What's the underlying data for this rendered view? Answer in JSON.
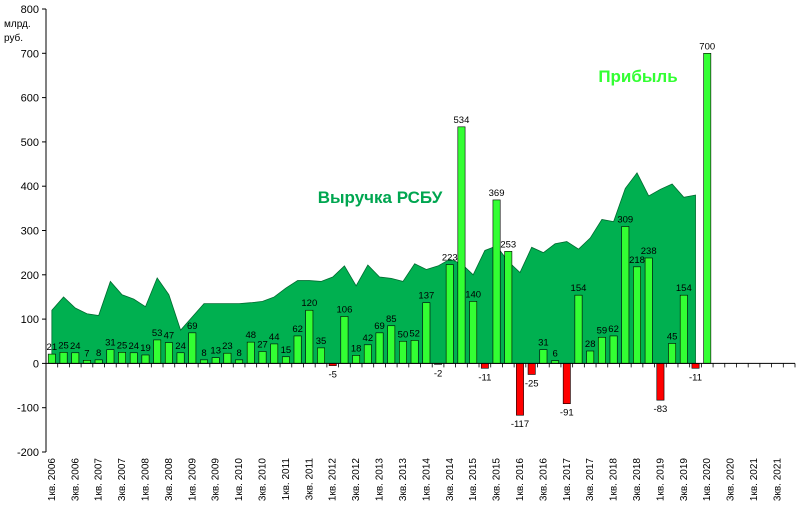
{
  "chart_data": {
    "type": "bar",
    "unit_label": [
      "млрд.",
      "руб."
    ],
    "ylim": [
      -200,
      800
    ],
    "y_ticks": [
      -200,
      -100,
      0,
      100,
      200,
      300,
      400,
      500,
      600,
      700,
      800
    ],
    "x_tick_labels": [
      "1кв. 2006",
      "3кв. 2006",
      "1кв. 2007",
      "3кв. 2007",
      "1кв. 2008",
      "3кв. 2008",
      "1кв. 2009",
      "3кв. 2009",
      "1кв. 2010",
      "3кв. 2010",
      "1кв. 2011",
      "3кв. 2011",
      "1кв. 2012",
      "3кв. 2012",
      "1кв. 2013",
      "3кв. 2013",
      "1кв. 2014",
      "3кв. 2014",
      "1кв. 2015",
      "3кв. 2015",
      "1кв. 2016",
      "3кв. 2016",
      "1кв. 2017",
      "3кв. 2017",
      "1кв. 2018",
      "3кв. 2018",
      "1кв. 2019",
      "3кв. 2019",
      "1кв. 2020",
      "3кв. 2020",
      "1кв. 2021",
      "3кв. 2021"
    ],
    "series": [
      {
        "name": "Выручка РСБУ",
        "type": "area",
        "color": "#00b050",
        "values": [
          120,
          150,
          125,
          112,
          108,
          185,
          155,
          145,
          128,
          193,
          155,
          75,
          105,
          135,
          135,
          135,
          135,
          137,
          140,
          150,
          170,
          187,
          187,
          185,
          195,
          220,
          175,
          222,
          195,
          192,
          185,
          225,
          212,
          220,
          235,
          225,
          200,
          255,
          265,
          230,
          205,
          262,
          250,
          270,
          275,
          258,
          283,
          325,
          320,
          395,
          430,
          378,
          393,
          405,
          375,
          380
        ]
      },
      {
        "name": "Прибыль",
        "type": "bar",
        "color": "#33ff33",
        "negative_color": "#ff0000",
        "values": [
          21,
          25,
          24,
          7,
          8,
          31,
          25,
          24,
          19,
          53,
          47,
          24,
          69,
          8,
          13,
          23,
          8,
          48,
          27,
          44,
          15,
          62,
          120,
          35,
          -5,
          106,
          18,
          42,
          69,
          85,
          50,
          52,
          137,
          -2,
          223,
          534,
          140,
          -11,
          369,
          253,
          -117,
          -25,
          31,
          6,
          -91,
          154,
          28,
          59,
          62,
          309,
          218,
          238,
          -83,
          45,
          154,
          -11,
          700,
          0,
          0,
          0,
          0,
          0,
          0,
          0
        ]
      }
    ],
    "data_labels": [
      "21",
      "25",
      "24",
      "7",
      "8",
      "31",
      "25",
      "24",
      "19",
      "53",
      "47",
      "24",
      "69",
      "8",
      "13",
      "23",
      "8",
      "48",
      "27",
      "44",
      "15",
      "62",
      "120",
      "35",
      "-5",
      "106",
      "18",
      "42",
      "69",
      "85",
      "50",
      "52",
      "137",
      "-2",
      "223",
      "534",
      "140",
      "-11",
      "369",
      "253",
      "-117",
      "-25",
      "31",
      "6",
      "-91",
      "154",
      "28",
      "59",
      "62",
      "309",
      "218",
      "238",
      "-83",
      "45",
      "154",
      "-11",
      "700"
    ],
    "grid": false,
    "legend": "none"
  }
}
